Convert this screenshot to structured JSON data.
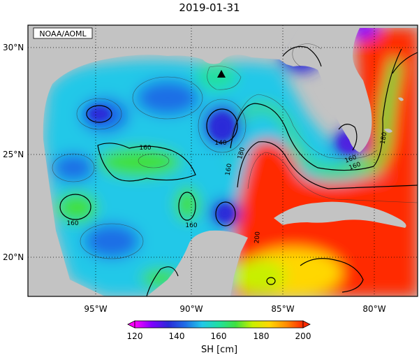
{
  "title": "2019-01-31",
  "credit": "NOAA/AOML",
  "lat_ticks": [
    "30°N",
    "25°N",
    "20°N"
  ],
  "lon_ticks": [
    "95°W",
    "90°W",
    "85°W",
    "80°W"
  ],
  "contour_labels": [
    "140",
    "160",
    "180",
    "160",
    "160",
    "160",
    "200",
    "180",
    "160",
    "160"
  ],
  "colorbar": {
    "label": "SH [cm]",
    "ticks": [
      "120",
      "140",
      "160",
      "180",
      "200"
    ],
    "min": 120,
    "max": 200,
    "colors": [
      "#ff00ff",
      "#8000ff",
      "#2a2ad8",
      "#1f6ee6",
      "#22c8e8",
      "#20e0a0",
      "#40e040",
      "#c8f000",
      "#ffd700",
      "#ff8c00",
      "#ff2a00"
    ]
  },
  "marker": "triangle",
  "colors": {
    "land": "#c3c3c3",
    "warm": "#ff2a00",
    "cool": "#22c8e8"
  }
}
